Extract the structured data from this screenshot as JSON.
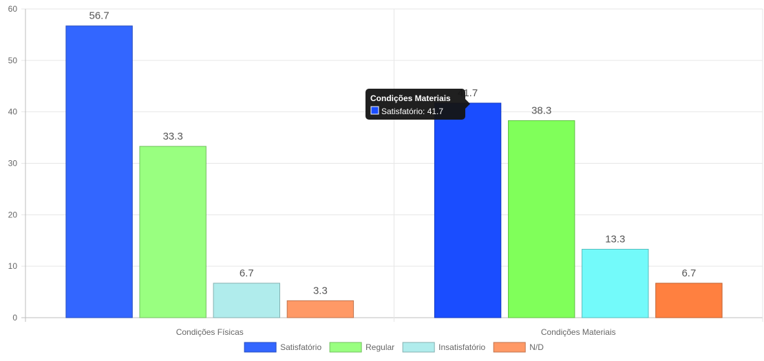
{
  "chart_data": {
    "type": "bar",
    "categories": [
      "Condições Físicas",
      "Condições Materiais"
    ],
    "series": [
      {
        "name": "Satisfatório",
        "values": [
          56.7,
          41.7
        ],
        "color": "#3366ff",
        "hover_color": "#1a4dff"
      },
      {
        "name": "Regular",
        "values": [
          33.3,
          38.3
        ],
        "color": "#99ff80",
        "hover_color": "#80ff5a"
      },
      {
        "name": "Insatisfatório",
        "values": [
          6.7,
          13.3
        ],
        "color": "#b0ecec",
        "hover_color": "#73fafa"
      },
      {
        "name": "N/D",
        "values": [
          3.3,
          6.7
        ],
        "color": "#ff9966",
        "hover_color": "#ff8040"
      }
    ],
    "yticks": [
      0,
      10,
      20,
      30,
      40,
      50,
      60
    ],
    "ylim": [
      0,
      60
    ],
    "grid": true,
    "legend": "bottom",
    "highlighted_category": 1,
    "tooltip": {
      "title": "Condições Materiais",
      "label": "Satisfatório: 41.7",
      "color": "#1a4dff"
    }
  }
}
